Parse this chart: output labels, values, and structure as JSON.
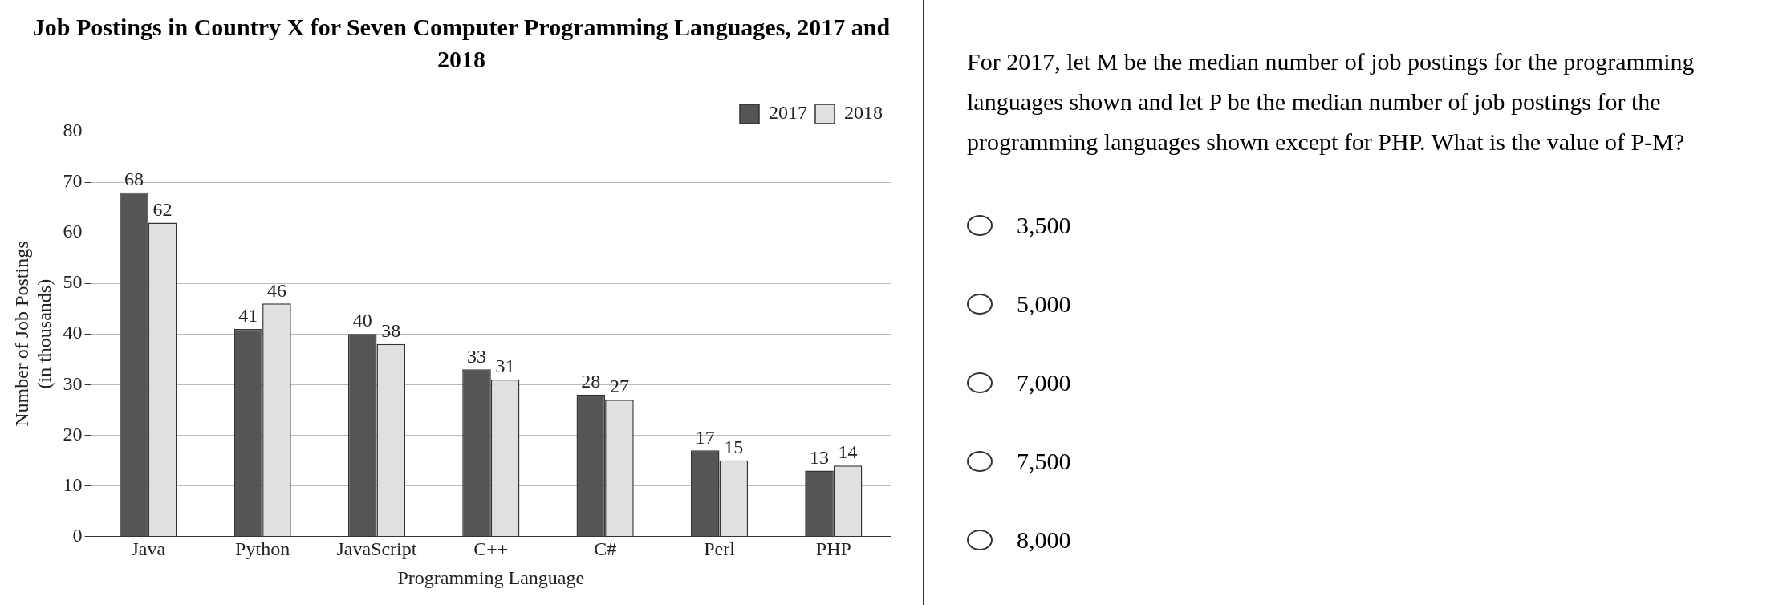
{
  "chart_data": {
    "type": "bar",
    "title": "Job Postings in Country X for Seven Computer Programming Languages, 2017 and 2018",
    "xlabel": "Programming Language",
    "ylabel": "Number of Job Postings (in thousands)",
    "categories": [
      "Java",
      "Python",
      "JavaScript",
      "C++",
      "C#",
      "Perl",
      "PHP"
    ],
    "series": [
      {
        "name": "2017",
        "color": "#555555",
        "values": [
          68,
          41,
          40,
          33,
          28,
          17,
          13
        ]
      },
      {
        "name": "2018",
        "color": "#e0e0e0",
        "values": [
          62,
          46,
          38,
          31,
          27,
          15,
          14
        ]
      }
    ],
    "ylim": [
      0,
      80
    ],
    "yticks": [
      0,
      10,
      20,
      30,
      40,
      50,
      60,
      70,
      80
    ],
    "grid": "y",
    "legend": "top right",
    "data_labels": true,
    "annotations": [
      "For 2017, let M be the median number of job postings for the programming languages shown and let P be the median number of job postings for the programming languages shown except for PHP. What is the value of P-M?",
      "3,500",
      "5,000",
      "7,000",
      "7,500",
      "8,000"
    ]
  }
}
